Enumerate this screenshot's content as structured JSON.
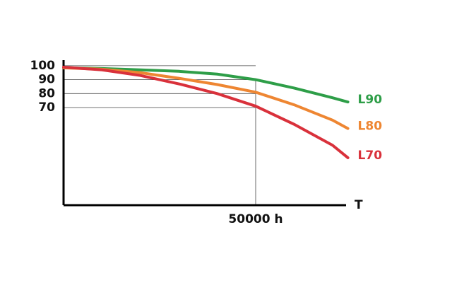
{
  "chart_data": {
    "type": "line",
    "x_label": "T",
    "x": [
      0,
      10000,
      20000,
      30000,
      40000,
      50000,
      60000,
      70000,
      74000
    ],
    "series": [
      {
        "name": "L90",
        "color": "#2e9e48",
        "values": [
          98.5,
          98,
          97,
          96,
          94,
          90,
          84,
          77,
          74
        ]
      },
      {
        "name": "L80",
        "color": "#ee8632",
        "values": [
          98.5,
          97.5,
          95,
          91,
          86.5,
          81,
          72,
          61,
          55
        ]
      },
      {
        "name": "L70",
        "color": "#d9313b",
        "values": [
          99,
          97,
          93,
          87,
          80,
          71,
          58,
          43,
          34
        ]
      }
    ],
    "xlim": [
      0,
      75000
    ],
    "xticks": [
      {
        "value": 50000,
        "label": "50000 h"
      }
    ],
    "ylim": [
      0,
      104
    ],
    "yticks": [
      100,
      90,
      80,
      70
    ],
    "grid": true
  }
}
